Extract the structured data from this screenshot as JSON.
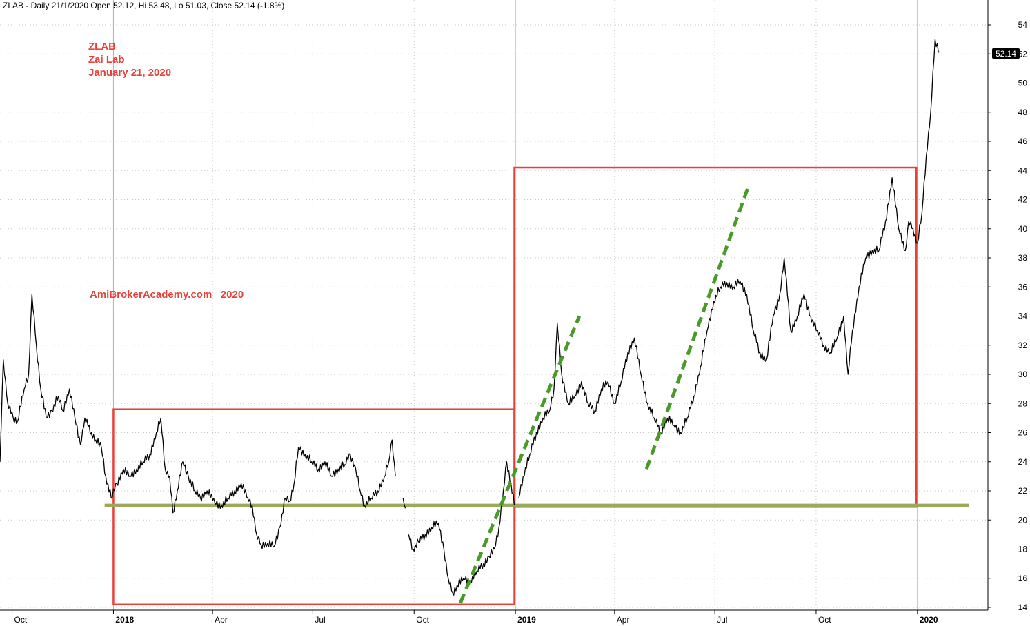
{
  "header": {
    "text": "ZLAB - Daily 21/1/2020 Open 52.12, Hi 53.48, Lo 51.03, Close 52.14 (-1.8%)"
  },
  "annotations": {
    "ticker": "ZLAB",
    "company": "Zai Lab",
    "date": "January 21, 2020",
    "watermark": "AmiBrokerAcademy.com   2020"
  },
  "last_price_label": "52.14",
  "colors": {
    "price_line": "#000000",
    "box": "#e8413a",
    "support": "#9aaa5a",
    "trend": "#4a9a2a",
    "grid": "#c8c8c8",
    "price_tag_bg": "#000000"
  },
  "chart_data": {
    "type": "line",
    "title": "ZLAB - Daily 21/1/2020 Open 52.12, Hi 53.48, Lo 51.03, Close 52.14 (-1.8%)",
    "xlabel": "",
    "ylabel": "",
    "ylim": [
      14,
      55
    ],
    "yticks": [
      14,
      16,
      18,
      20,
      22,
      24,
      26,
      28,
      30,
      32,
      34,
      36,
      38,
      40,
      42,
      44,
      46,
      48,
      50,
      52,
      54
    ],
    "grid": true,
    "x_range": [
      "2017-09-20",
      "2020-03-05"
    ],
    "xticks": [
      {
        "date": "2017-10-01",
        "label": "Oct",
        "bold": false
      },
      {
        "date": "2018-01-01",
        "label": "2018",
        "bold": true
      },
      {
        "date": "2018-04-01",
        "label": "Apr",
        "bold": false
      },
      {
        "date": "2018-07-01",
        "label": "Jul",
        "bold": false
      },
      {
        "date": "2018-10-01",
        "label": "Oct",
        "bold": false
      },
      {
        "date": "2019-01-01",
        "label": "2019",
        "bold": true
      },
      {
        "date": "2019-04-01",
        "label": "Apr",
        "bold": false
      },
      {
        "date": "2019-07-01",
        "label": "Jul",
        "bold": false
      },
      {
        "date": "2019-10-01",
        "label": "Oct",
        "bold": false
      },
      {
        "date": "2020-01-01",
        "label": "2020",
        "bold": true
      }
    ],
    "series": [
      {
        "points": [
          [
            "2017-09-20",
            24
          ],
          [
            "2017-09-23",
            31
          ],
          [
            "2017-09-27",
            28
          ],
          [
            "2017-10-02",
            27
          ],
          [
            "2017-10-06",
            26.8
          ],
          [
            "2017-10-12",
            29
          ],
          [
            "2017-10-16",
            30
          ],
          [
            "2017-10-19",
            35.5
          ],
          [
            "2017-10-23",
            32
          ],
          [
            "2017-10-27",
            29
          ],
          [
            "2017-11-01",
            27
          ],
          [
            "2017-11-06",
            27.5
          ],
          [
            "2017-11-12",
            28.5
          ],
          [
            "2017-11-16",
            27.5
          ],
          [
            "2017-11-22",
            29
          ],
          [
            "2017-11-27",
            27
          ],
          [
            "2017-12-02",
            25.2
          ],
          [
            "2017-12-06",
            27
          ],
          [
            "2017-12-12",
            26
          ],
          [
            "2017-12-16",
            25.5
          ],
          [
            "2017-12-21",
            25
          ],
          [
            "2017-12-25",
            23
          ],
          [
            "2017-12-30",
            21.5
          ],
          [
            "2018-01-04",
            22.5
          ],
          [
            "2018-01-10",
            23.5
          ],
          [
            "2018-01-16",
            23
          ],
          [
            "2018-01-22",
            23.5
          ],
          [
            "2018-01-28",
            24
          ],
          [
            "2018-02-03",
            24.5
          ],
          [
            "2018-02-09",
            26
          ],
          [
            "2018-02-13",
            27
          ],
          [
            "2018-02-17",
            23.5
          ],
          [
            "2018-02-21",
            23
          ],
          [
            "2018-02-24",
            20.5
          ],
          [
            "2018-02-28",
            22
          ],
          [
            "2018-03-05",
            24
          ],
          [
            "2018-03-10",
            23
          ],
          [
            "2018-03-16",
            22
          ],
          [
            "2018-03-21",
            21.5
          ],
          [
            "2018-03-27",
            22
          ],
          [
            "2018-04-03",
            21.2
          ],
          [
            "2018-04-09",
            21
          ],
          [
            "2018-04-15",
            21.5
          ],
          [
            "2018-04-21",
            22
          ],
          [
            "2018-04-27",
            22.5
          ],
          [
            "2018-05-03",
            21.5
          ],
          [
            "2018-05-07",
            21
          ],
          [
            "2018-05-11",
            19
          ],
          [
            "2018-05-15",
            18.3
          ],
          [
            "2018-05-21",
            18.4
          ],
          [
            "2018-05-27",
            18.2
          ],
          [
            "2018-06-01",
            19.5
          ],
          [
            "2018-06-06",
            21.5
          ],
          [
            "2018-06-10",
            21.3
          ],
          [
            "2018-06-14",
            22.5
          ],
          [
            "2018-06-18",
            25
          ],
          [
            "2018-06-24",
            24.5
          ],
          [
            "2018-06-30",
            24
          ],
          [
            "2018-07-06",
            23.5
          ],
          [
            "2018-07-12",
            24
          ],
          [
            "2018-07-18",
            23
          ],
          [
            "2018-07-24",
            23.5
          ],
          [
            "2018-07-30",
            23.8
          ],
          [
            "2018-08-04",
            24.5
          ],
          [
            "2018-08-09",
            23.5
          ],
          [
            "2018-08-13",
            22
          ],
          [
            "2018-08-17",
            21
          ],
          [
            "2018-08-23",
            21.5
          ],
          [
            "2018-08-29",
            22
          ],
          [
            "2018-09-04",
            23
          ],
          [
            "2018-09-08",
            24
          ],
          [
            "2018-09-11",
            25.5
          ],
          [
            "2018-09-14",
            23
          ],
          [
            "2018-09-15",
            null
          ],
          [
            "2018-09-21",
            21.5
          ],
          [
            "2018-09-23",
            20.8
          ],
          [
            "2018-09-24",
            null
          ],
          [
            "2018-09-26",
            19
          ],
          [
            "2018-09-30",
            18
          ],
          [
            "2018-10-05",
            18.5
          ],
          [
            "2018-10-11",
            19
          ],
          [
            "2018-10-17",
            19.5
          ],
          [
            "2018-10-23",
            19.8
          ],
          [
            "2018-10-28",
            18
          ],
          [
            "2018-11-01",
            16
          ],
          [
            "2018-11-05",
            15
          ],
          [
            "2018-11-09",
            15.5
          ],
          [
            "2018-11-15",
            16
          ],
          [
            "2018-11-21",
            15.8
          ],
          [
            "2018-11-27",
            16.5
          ],
          [
            "2018-12-03",
            17
          ],
          [
            "2018-12-08",
            17.5
          ],
          [
            "2018-12-13",
            18
          ],
          [
            "2018-12-17",
            19.5
          ],
          [
            "2018-12-21",
            22
          ],
          [
            "2018-12-24",
            24
          ],
          [
            "2018-12-28",
            22.5
          ],
          [
            "2018-12-31",
            21
          ],
          [
            "2019-01-01",
            null
          ],
          [
            "2019-01-04",
            21.5
          ],
          [
            "2019-01-08",
            23
          ],
          [
            "2019-01-14",
            24.5
          ],
          [
            "2019-01-20",
            26
          ],
          [
            "2019-01-26",
            27
          ],
          [
            "2019-02-01",
            27.5
          ],
          [
            "2019-02-05",
            29
          ],
          [
            "2019-02-08",
            33.5
          ],
          [
            "2019-02-12",
            30
          ],
          [
            "2019-02-18",
            28
          ],
          [
            "2019-02-24",
            28.5
          ],
          [
            "2019-03-02",
            29.5
          ],
          [
            "2019-03-08",
            28
          ],
          [
            "2019-03-14",
            27.5
          ],
          [
            "2019-03-20",
            29
          ],
          [
            "2019-03-26",
            29.5
          ],
          [
            "2019-04-01",
            28
          ],
          [
            "2019-04-07",
            29.5
          ],
          [
            "2019-04-13",
            31.5
          ],
          [
            "2019-04-19",
            32.5
          ],
          [
            "2019-04-25",
            30
          ],
          [
            "2019-05-01",
            28
          ],
          [
            "2019-05-07",
            27
          ],
          [
            "2019-05-13",
            26
          ],
          [
            "2019-05-19",
            27
          ],
          [
            "2019-05-25",
            26.5
          ],
          [
            "2019-05-31",
            26
          ],
          [
            "2019-06-06",
            27
          ],
          [
            "2019-06-12",
            28.5
          ],
          [
            "2019-06-18",
            30.5
          ],
          [
            "2019-06-24",
            33
          ],
          [
            "2019-06-30",
            35
          ],
          [
            "2019-07-06",
            36
          ],
          [
            "2019-07-12",
            36.3
          ],
          [
            "2019-07-18",
            36
          ],
          [
            "2019-07-24",
            36.4
          ],
          [
            "2019-07-30",
            35.5
          ],
          [
            "2019-08-05",
            33
          ],
          [
            "2019-08-11",
            31.5
          ],
          [
            "2019-08-17",
            31
          ],
          [
            "2019-08-23",
            34
          ],
          [
            "2019-08-29",
            35.5
          ],
          [
            "2019-09-02",
            38
          ],
          [
            "2019-09-08",
            33
          ],
          [
            "2019-09-14",
            34
          ],
          [
            "2019-09-20",
            35.5
          ],
          [
            "2019-09-26",
            34
          ],
          [
            "2019-10-02",
            33
          ],
          [
            "2019-10-08",
            32
          ],
          [
            "2019-10-14",
            31.5
          ],
          [
            "2019-10-20",
            32.5
          ],
          [
            "2019-10-26",
            34
          ],
          [
            "2019-10-30",
            30
          ],
          [
            "2019-11-03",
            33
          ],
          [
            "2019-11-09",
            36
          ],
          [
            "2019-11-15",
            38
          ],
          [
            "2019-11-21",
            38.5
          ],
          [
            "2019-11-27",
            38.5
          ],
          [
            "2019-12-03",
            40.5
          ],
          [
            "2019-12-09",
            43.5
          ],
          [
            "2019-12-15",
            40
          ],
          [
            "2019-12-21",
            38.5
          ],
          [
            "2019-12-24",
            40.5
          ],
          [
            "2019-12-28",
            40
          ],
          [
            "2020-01-01",
            39
          ],
          [
            "2020-01-05",
            41
          ],
          [
            "2020-01-09",
            45
          ],
          [
            "2020-01-13",
            48
          ],
          [
            "2020-01-17",
            53
          ],
          [
            "2020-01-21",
            52.14
          ]
        ]
      }
    ],
    "shapes": {
      "boxes": [
        {
          "x0": "2018-01-01",
          "x1": "2018-12-31",
          "y0": 14.2,
          "y1": 27.6
        },
        {
          "x0": "2018-12-31",
          "x1": "2019-12-31",
          "y0": 20.9,
          "y1": 44.2
        }
      ],
      "support_line": {
        "x0": "2017-12-24",
        "x1": "2020-02-17",
        "y": 21
      },
      "trend_lines": [
        {
          "x0": "2018-11-12",
          "y0": 14.3,
          "x1": "2019-02-28",
          "y1": 34
        },
        {
          "x0": "2019-04-30",
          "y0": 23.5,
          "x1": "2019-08-01",
          "y1": 43
        }
      ]
    }
  }
}
